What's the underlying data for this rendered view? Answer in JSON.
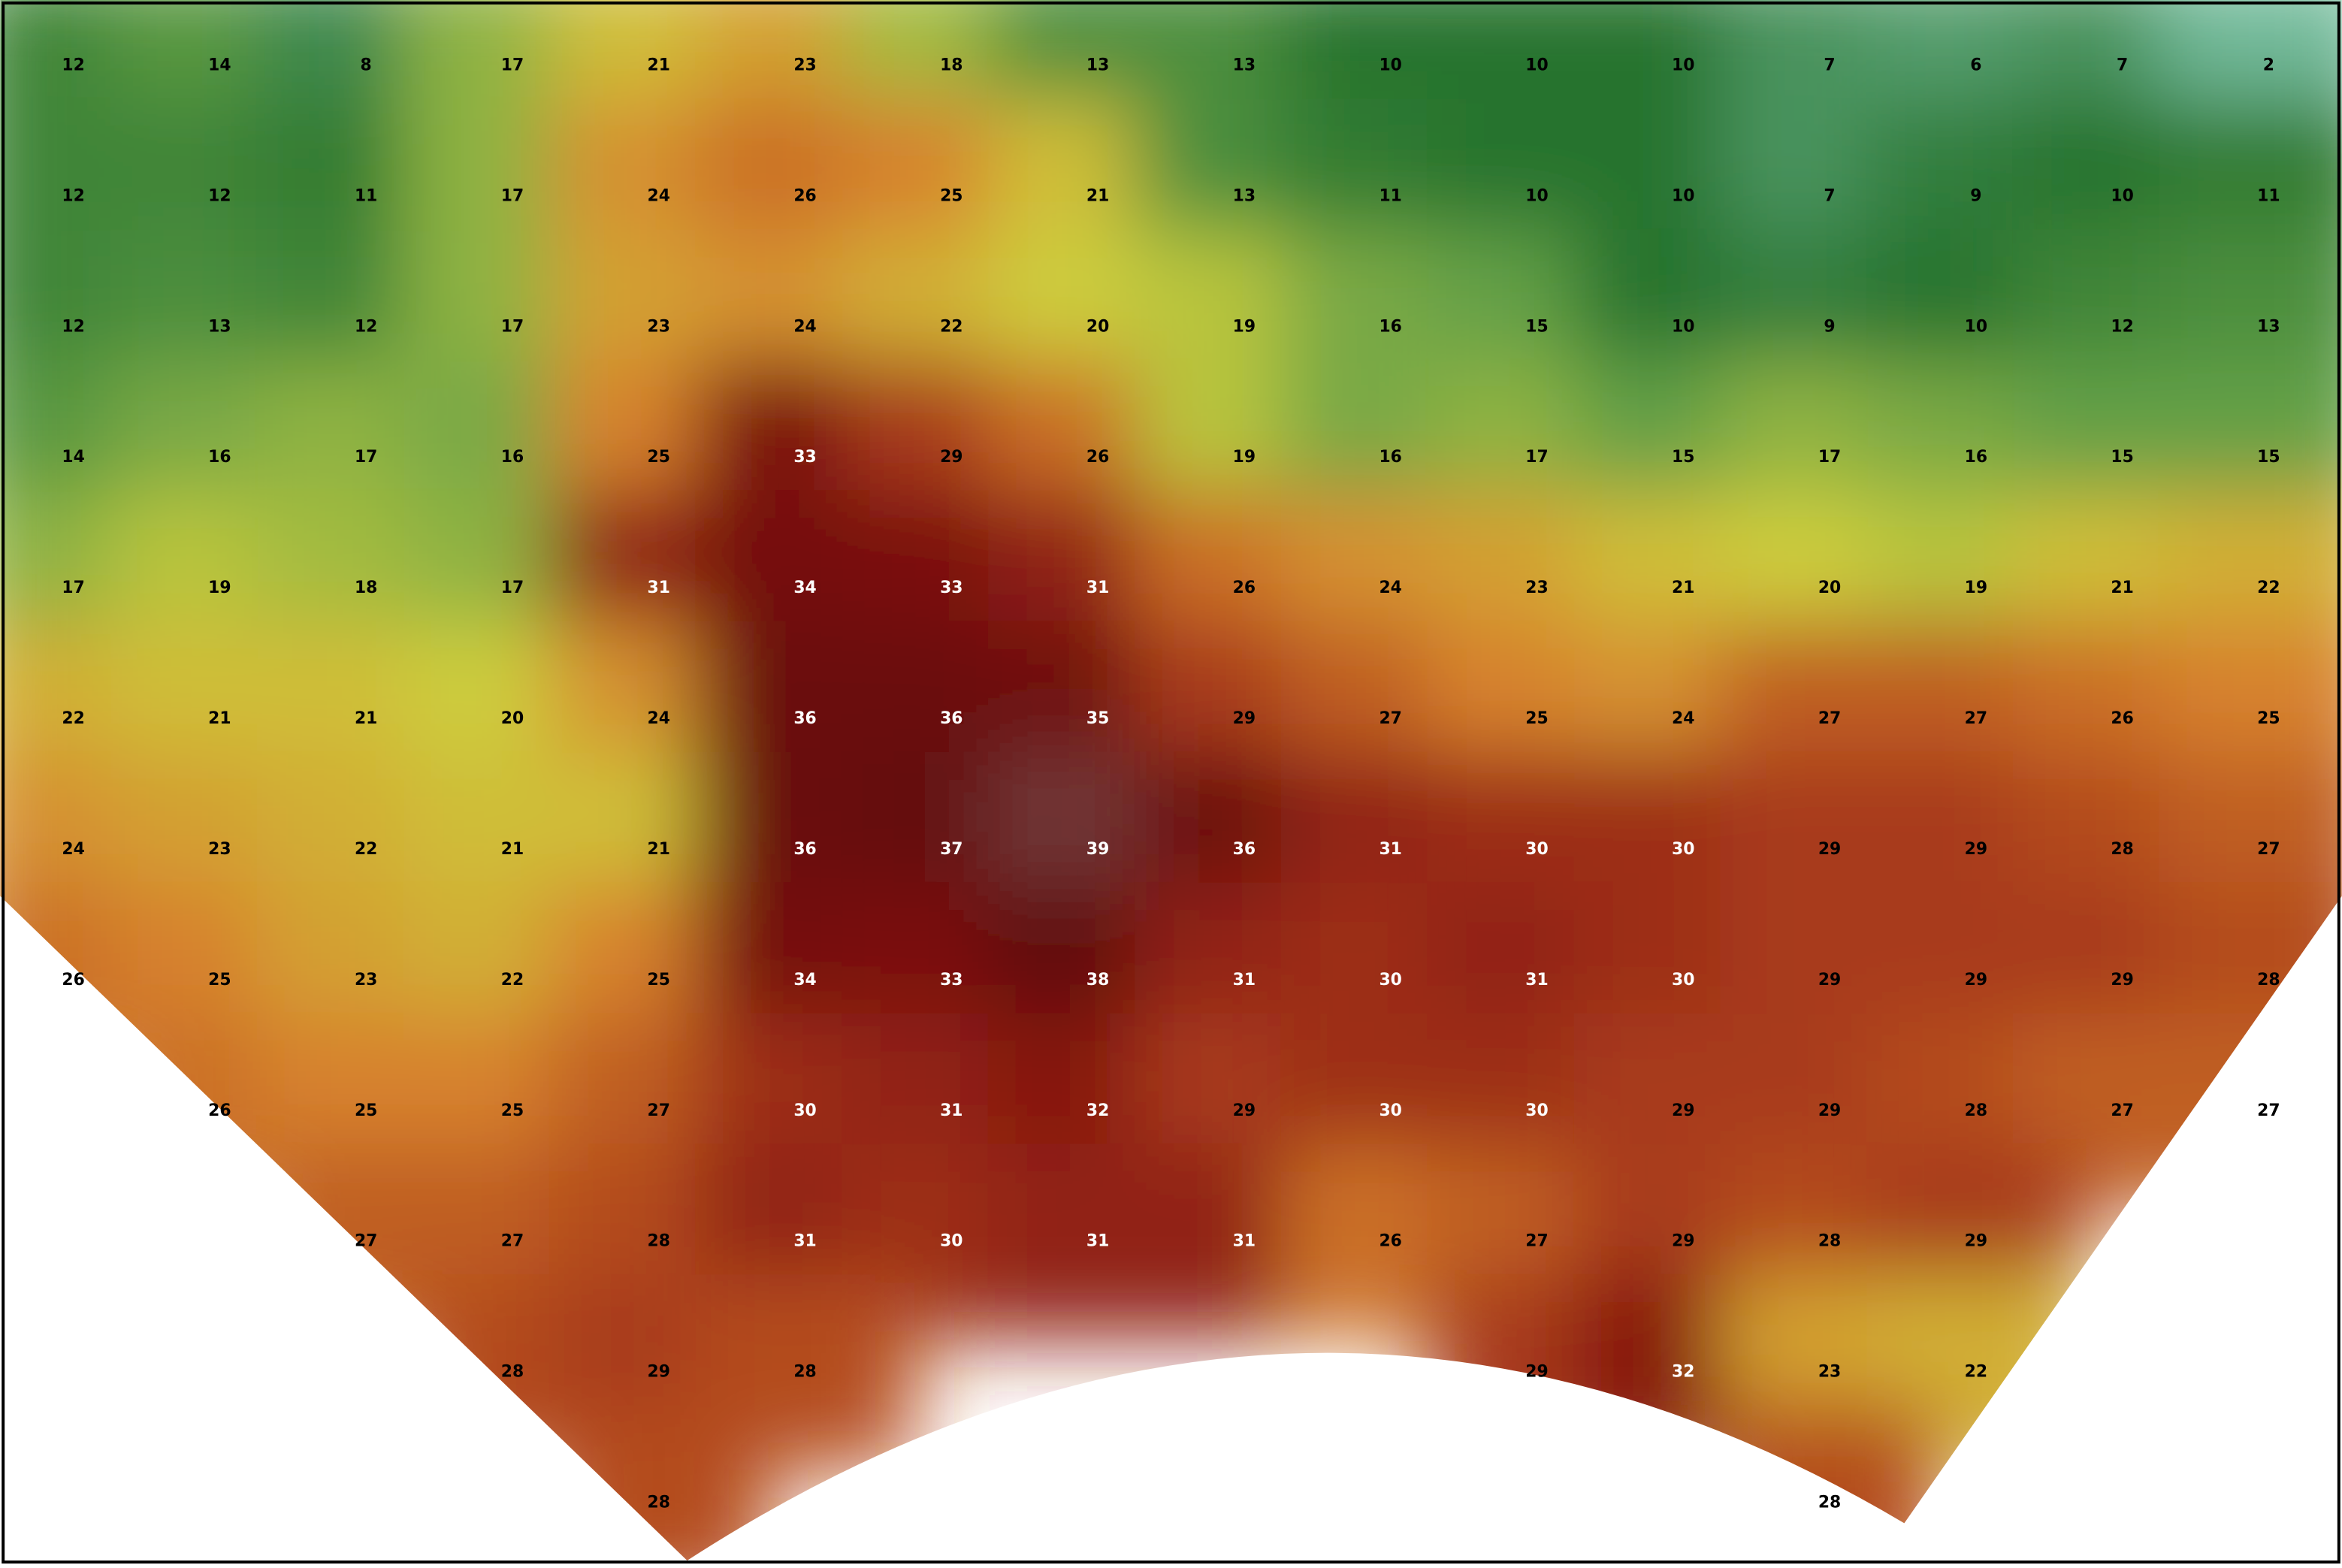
{
  "map": {
    "grid": [
      [
        12,
        14,
        8,
        17,
        21,
        23,
        18,
        13,
        13,
        10,
        10,
        10,
        7,
        6,
        7,
        2
      ],
      [
        12,
        12,
        11,
        17,
        24,
        26,
        25,
        21,
        13,
        11,
        10,
        10,
        7,
        9,
        10,
        11
      ],
      [
        12,
        13,
        12,
        17,
        23,
        24,
        22,
        20,
        19,
        16,
        15,
        10,
        9,
        10,
        12,
        13
      ],
      [
        14,
        16,
        17,
        16,
        25,
        33,
        29,
        26,
        19,
        16,
        17,
        15,
        17,
        16,
        15,
        15
      ],
      [
        17,
        19,
        18,
        17,
        31,
        34,
        33,
        31,
        26,
        24,
        23,
        21,
        20,
        19,
        21,
        22
      ],
      [
        22,
        21,
        21,
        20,
        24,
        36,
        36,
        35,
        29,
        27,
        25,
        24,
        27,
        27,
        26,
        25
      ],
      [
        24,
        23,
        22,
        21,
        21,
        36,
        37,
        39,
        36,
        31,
        30,
        30,
        29,
        29,
        28,
        27
      ],
      [
        26,
        25,
        23,
        22,
        25,
        34,
        33,
        38,
        31,
        30,
        31,
        30,
        29,
        29,
        29,
        28
      ],
      [
        null,
        26,
        25,
        25,
        27,
        30,
        31,
        32,
        29,
        30,
        30,
        29,
        29,
        28,
        27,
        27
      ],
      [
        null,
        null,
        27,
        27,
        28,
        31,
        30,
        31,
        31,
        26,
        27,
        29,
        28,
        29,
        null,
        null
      ],
      [
        null,
        null,
        null,
        28,
        29,
        28,
        null,
        null,
        null,
        null,
        29,
        32,
        23,
        22,
        null,
        null
      ],
      [
        null,
        null,
        null,
        null,
        28,
        null,
        null,
        null,
        null,
        null,
        null,
        null,
        28,
        null,
        null,
        null
      ]
    ]
  }
}
